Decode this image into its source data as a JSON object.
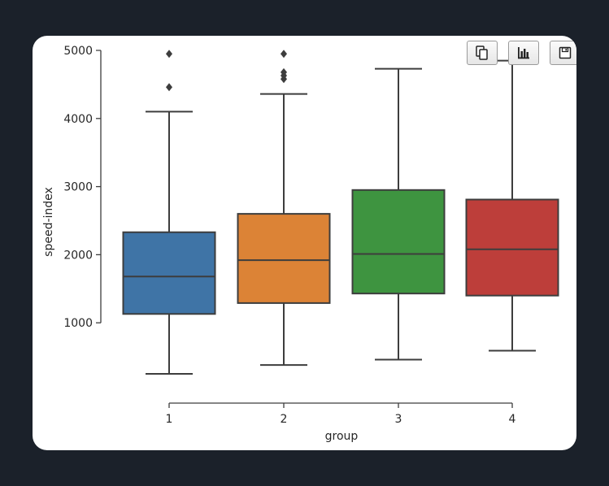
{
  "chart_data": {
    "type": "box",
    "xlabel": "group",
    "ylabel": "speed-index",
    "categories": [
      "1",
      "2",
      "3",
      "4"
    ],
    "ylim": [
      0,
      5000
    ],
    "yticks": [
      1000,
      2000,
      3000,
      4000,
      5000
    ],
    "grid": false,
    "boxes": [
      {
        "category": "1",
        "whisker_low": 250,
        "q1": 1130,
        "median": 1680,
        "q3": 2330,
        "whisker_high": 4100,
        "outliers": [
          4460,
          4950
        ],
        "color": "#3f74a6"
      },
      {
        "category": "2",
        "whisker_low": 380,
        "q1": 1290,
        "median": 1920,
        "q3": 2600,
        "whisker_high": 4360,
        "outliers": [
          4580,
          4630,
          4680,
          4950
        ],
        "color": "#dc8336"
      },
      {
        "category": "3",
        "whisker_low": 460,
        "q1": 1430,
        "median": 2010,
        "q3": 2950,
        "whisker_high": 4730,
        "outliers": [],
        "color": "#3e9440"
      },
      {
        "category": "4",
        "whisker_low": 590,
        "q1": 1400,
        "median": 2080,
        "q3": 2810,
        "whisker_high": 4850,
        "outliers": [],
        "color": "#bd3e3a"
      }
    ]
  },
  "toolbar": {
    "copy_icon": "copy-icon",
    "chart_icon": "bar-chart-icon",
    "save_icon": "save-icon"
  }
}
